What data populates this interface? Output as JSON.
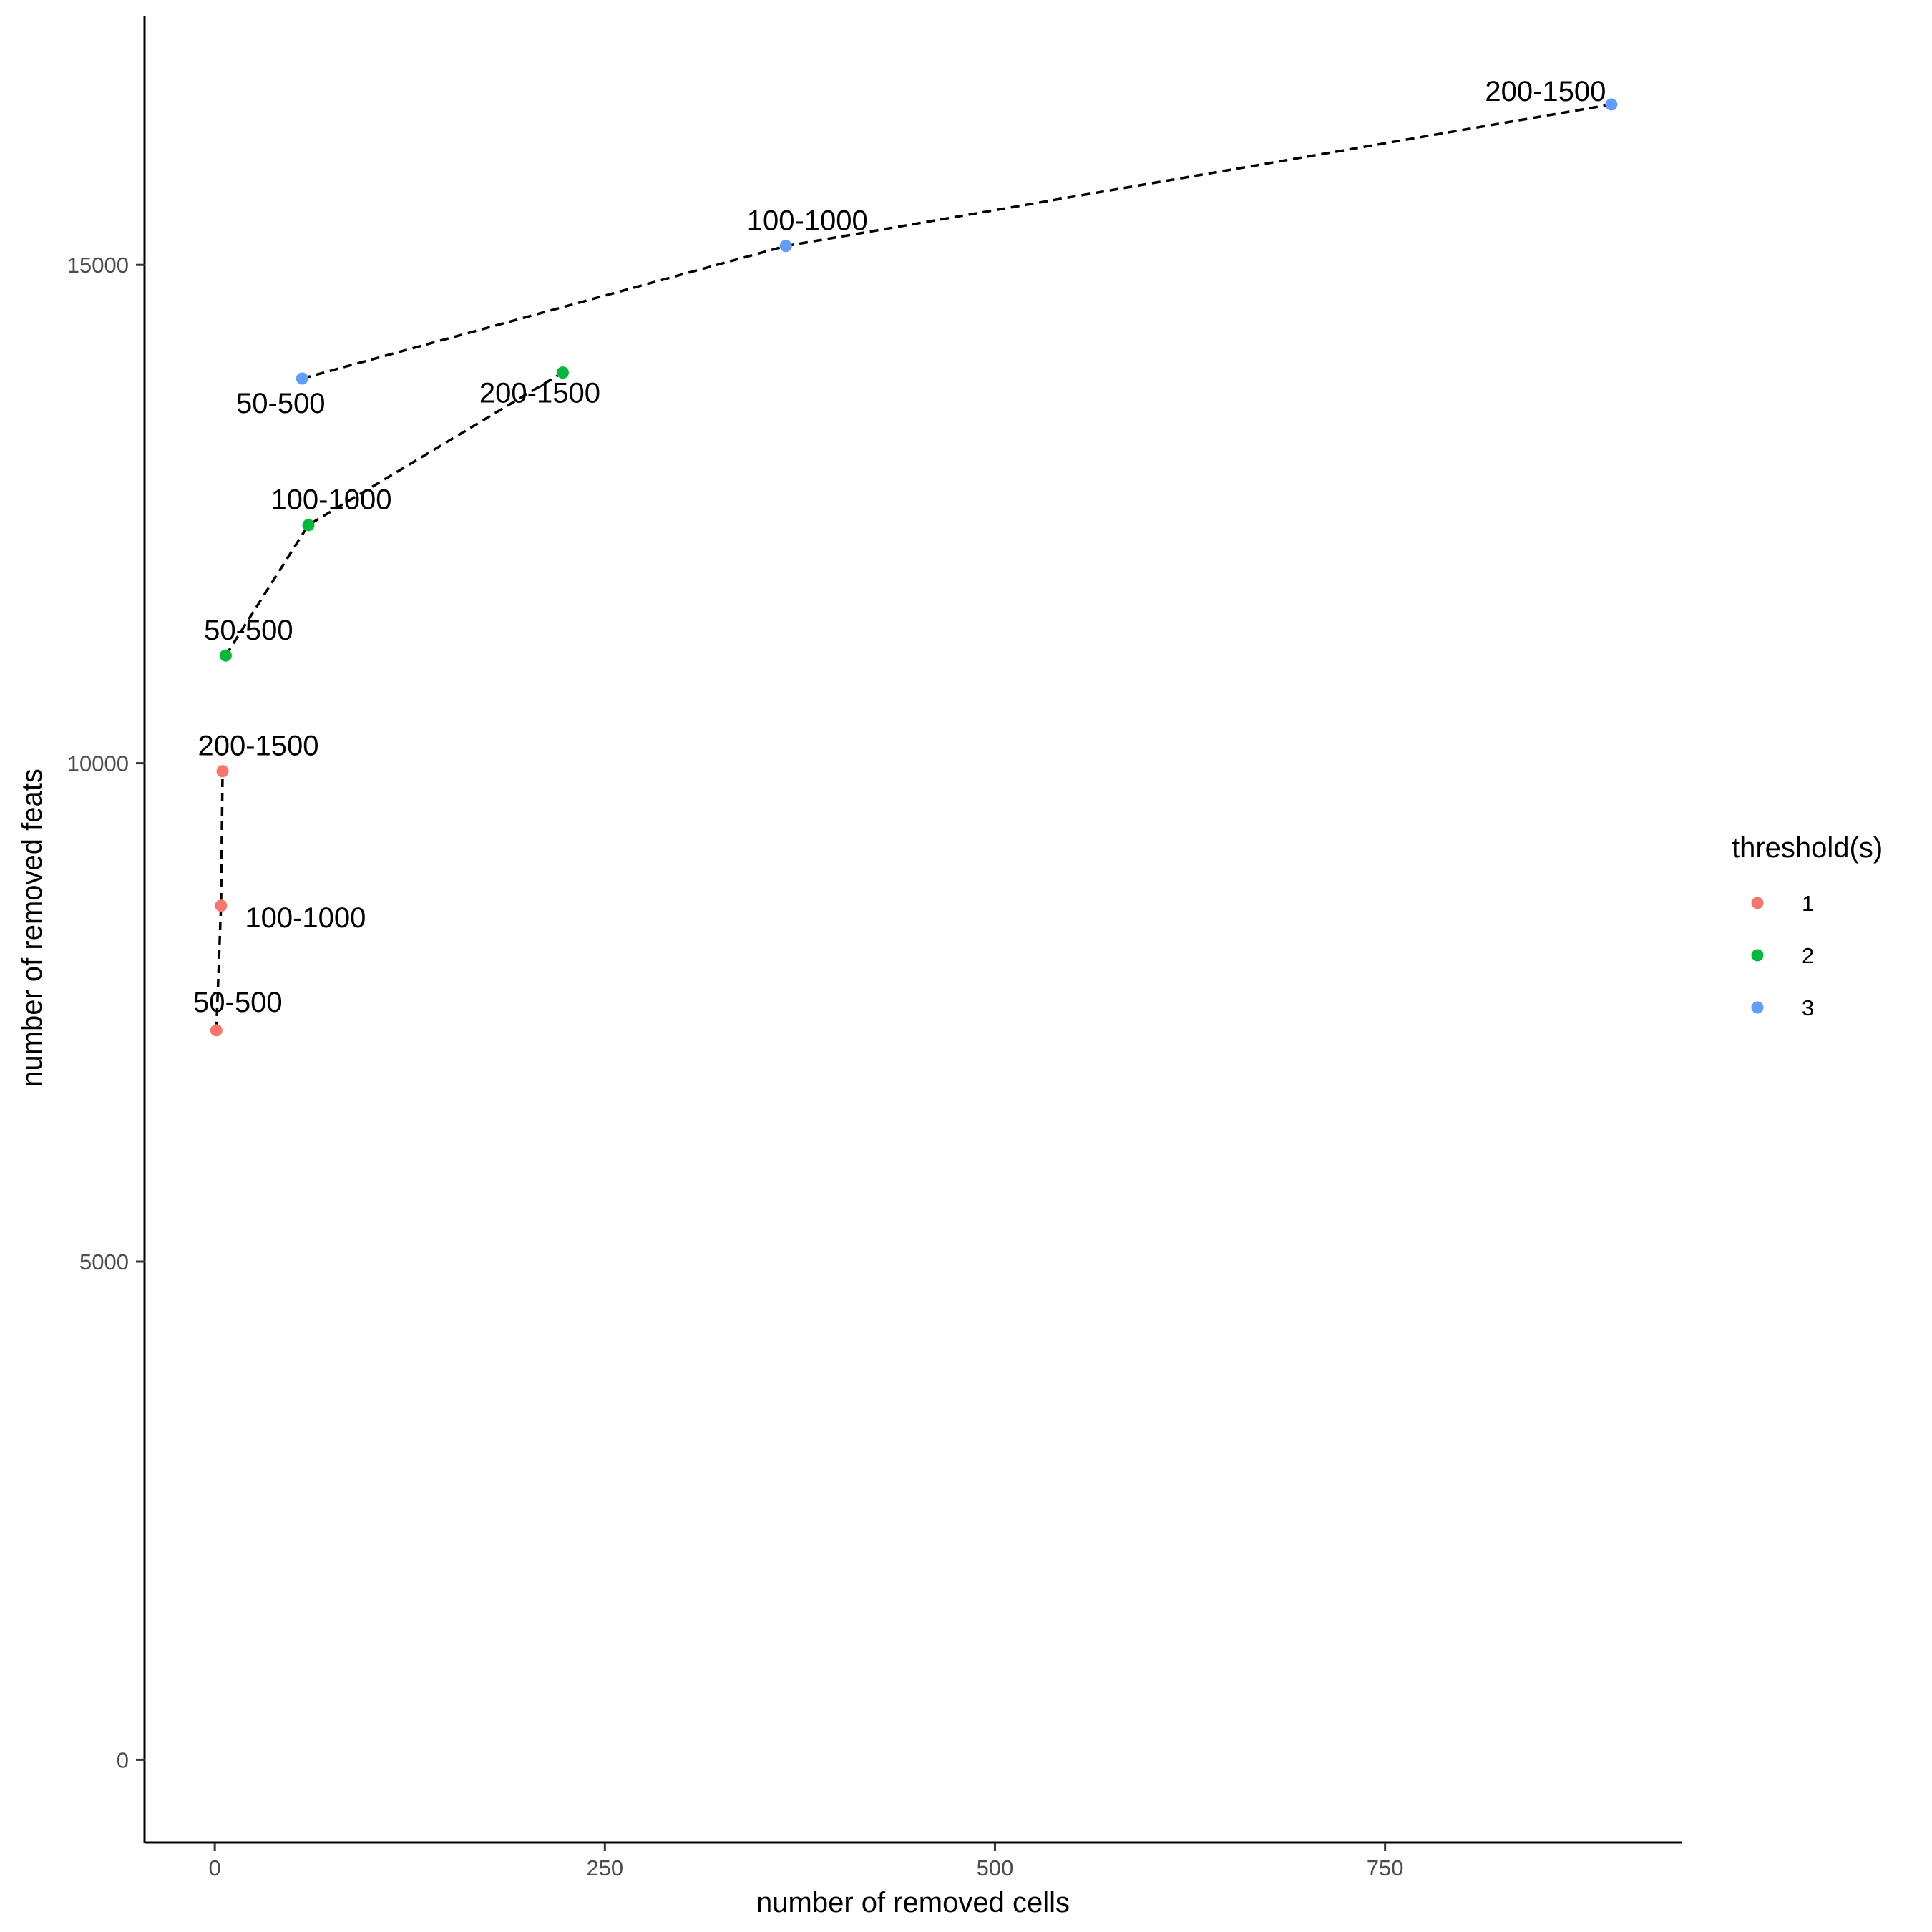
{
  "chart_data": {
    "type": "scatter",
    "title": "",
    "xlabel": "number of removed cells",
    "ylabel": "number of removed feats",
    "xlim": [
      -45,
      940
    ],
    "ylim": [
      -830,
      17500
    ],
    "x_ticks": [
      0,
      250,
      500,
      750
    ],
    "y_ticks": [
      0,
      5000,
      10000,
      15000
    ],
    "grid": false,
    "connect_series": "dashed",
    "legend": {
      "title": "threshold(s)",
      "position": "right"
    },
    "series": [
      {
        "name": "1",
        "color": "#F8766D",
        "points": [
          {
            "x": 1,
            "y": 7320,
            "label": "50-500"
          },
          {
            "x": 4,
            "y": 8570,
            "label": "100-1000"
          },
          {
            "x": 5,
            "y": 9920,
            "label": "200-1500"
          }
        ]
      },
      {
        "name": "2",
        "color": "#00BA38",
        "points": [
          {
            "x": 7,
            "y": 11080,
            "label": "50-500"
          },
          {
            "x": 60,
            "y": 12390,
            "label": "100-1000"
          },
          {
            "x": 223,
            "y": 13920,
            "label": "200-1500"
          }
        ]
      },
      {
        "name": "3",
        "color": "#619CFF",
        "points": [
          {
            "x": 56,
            "y": 13860,
            "label": "50-500"
          },
          {
            "x": 366,
            "y": 15190,
            "label": "100-1000"
          },
          {
            "x": 895,
            "y": 16610,
            "label": "200-1500"
          }
        ]
      }
    ]
  }
}
